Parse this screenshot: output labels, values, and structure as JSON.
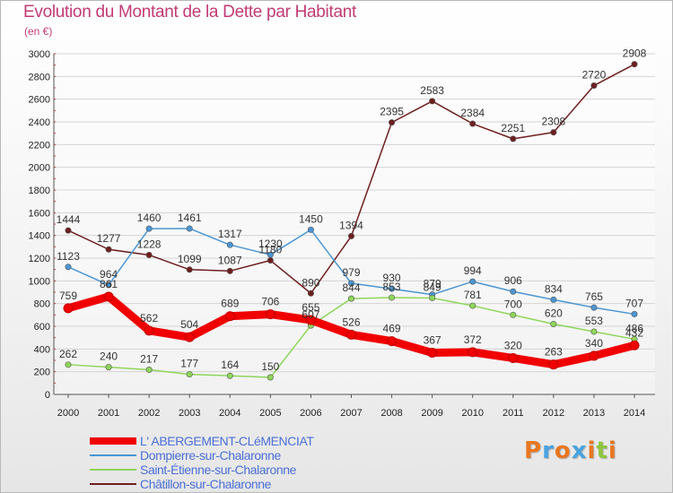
{
  "header": {
    "title": "Evolution du Montant de la Dette par Habitant",
    "unit": "(en €)"
  },
  "branding": {
    "text": "Proxiti",
    "letter_colors": [
      "#e87722",
      "#4aa3df",
      "#e87722",
      "#4aa3df",
      "#e87722",
      "#8dc63f",
      "#e87722"
    ]
  },
  "chart_data": {
    "type": "line",
    "title": "Evolution du Montant de la Dette par Habitant",
    "ylabel": "(en €)",
    "ylim": [
      0,
      3000
    ],
    "yticks": [
      0,
      200,
      400,
      600,
      800,
      1000,
      1200,
      1400,
      1600,
      1800,
      2000,
      2200,
      2400,
      2600,
      2800,
      3000
    ],
    "x": [
      "2000",
      "2001",
      "2002",
      "2003",
      "2004",
      "2005",
      "2006",
      "2007",
      "2008",
      "2009",
      "2010",
      "2011",
      "2012",
      "2013",
      "2014"
    ],
    "grid": "horizontal",
    "legend_position": "bottom-left",
    "series": [
      {
        "name": "L' ABERGEMENT-CLéMENCIAT",
        "color": "#f00000",
        "emphasis": true,
        "values": [
          759,
          861,
          562,
          504,
          689,
          706,
          655,
          526,
          469,
          367,
          372,
          320,
          263,
          340,
          432
        ]
      },
      {
        "name": "Dompierre-sur-Chalaronne",
        "color": "#4b96d2",
        "values": [
          1123,
          964,
          1460,
          1461,
          1317,
          1230,
          1450,
          979,
          930,
          879,
          994,
          906,
          834,
          765,
          707
        ]
      },
      {
        "name": "Saint-Étienne-sur-Chalaronne",
        "color": "#8fd65a",
        "values": [
          262,
          240,
          217,
          177,
          164,
          150,
          607,
          844,
          853,
          849,
          781,
          700,
          620,
          553,
          486
        ]
      },
      {
        "name": "Châtillon-sur-Chalaronne",
        "color": "#6e1e1e",
        "values": [
          1444,
          1277,
          1228,
          1099,
          1087,
          1180,
          890,
          1394,
          2395,
          2583,
          2384,
          2251,
          2308,
          2720,
          2908
        ]
      }
    ]
  }
}
